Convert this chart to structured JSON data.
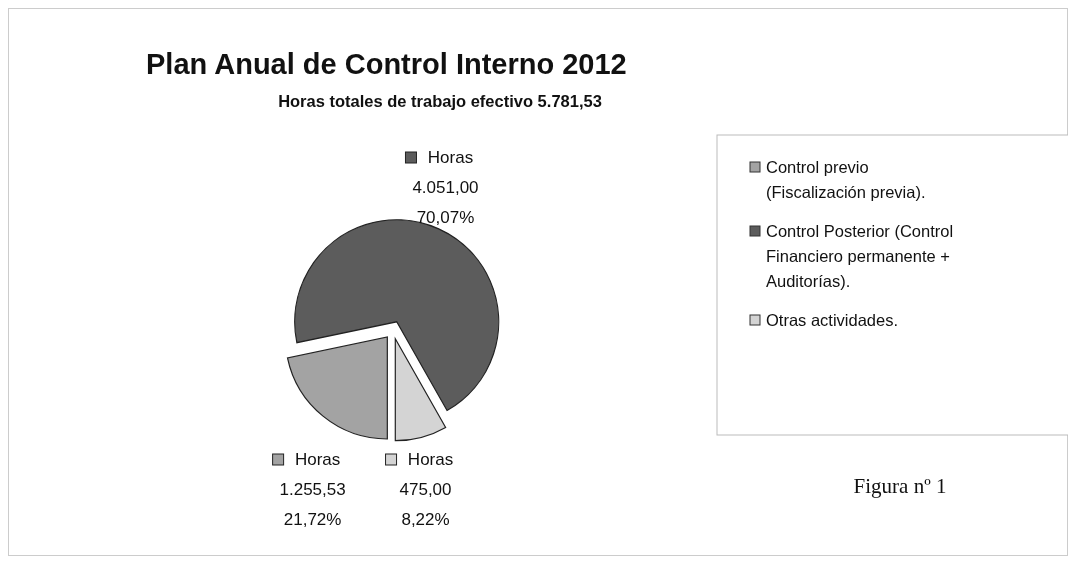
{
  "chart_data": {
    "type": "pie",
    "title": "Plan Anual de Control Interno 2012",
    "subtitle": "Horas totales de trabajo efectivo 5.781,53",
    "categories": [
      "Control previo (Fiscalización previa).",
      "Control Posterior (Control Financiero permanente + Auditorías).",
      "Otras actividades."
    ],
    "series": [
      {
        "name": "Horas",
        "values": [
          1255.53,
          4051,
          475
        ],
        "value_labels": [
          "1.255,53\n21,72%",
          "4.051,00\n70,07%",
          "475,00\n8,22%"
        ]
      }
    ],
    "colors": [
      "#a3a3a3",
      "#5c5c5c",
      "#d4d4d4"
    ],
    "legend": "right",
    "annotations": [
      "Figura nº 1"
    ]
  }
}
